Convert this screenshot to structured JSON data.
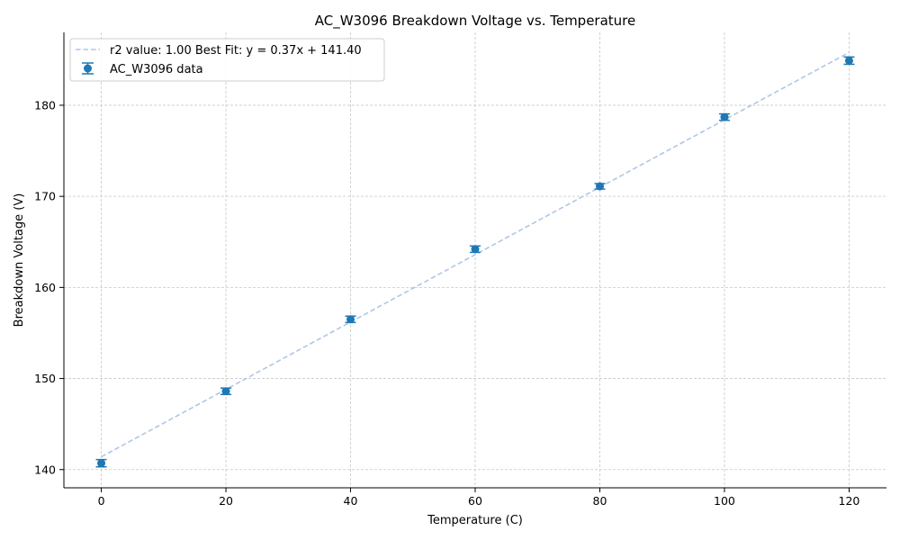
{
  "chart_data": {
    "type": "scatter",
    "title": "AC_W3096 Breakdown Voltage vs. Temperature",
    "xlabel": "Temperature (C)",
    "ylabel": "Breakdown Voltage (V)",
    "xlim": [
      -6,
      126
    ],
    "ylim": [
      138,
      188
    ],
    "xticks": [
      0,
      20,
      40,
      60,
      80,
      100,
      120
    ],
    "yticks": [
      140,
      150,
      160,
      170,
      180
    ],
    "grid": true,
    "legend": {
      "position": "top-left"
    },
    "series": [
      {
        "name": "AC_W3096 data",
        "kind": "errorbar",
        "color": "#1f77b4",
        "x": [
          0,
          20,
          40,
          60,
          80,
          100,
          120
        ],
        "y": [
          140.7,
          148.6,
          156.5,
          164.2,
          171.1,
          178.7,
          184.9
        ],
        "yerr": [
          0.4,
          0.35,
          0.35,
          0.35,
          0.3,
          0.35,
          0.4
        ]
      },
      {
        "name": "r2 value: 1.00 Best Fit: y = 0.37x + 141.40",
        "kind": "fit-line",
        "color": "#aec7e8",
        "x": [
          0,
          120
        ],
        "y": [
          141.4,
          185.8
        ]
      }
    ]
  }
}
